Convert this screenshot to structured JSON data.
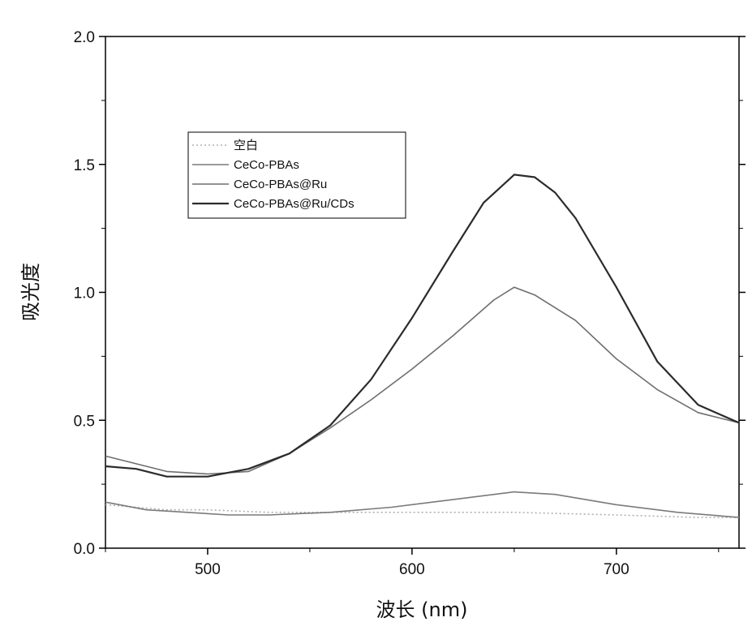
{
  "chart_data": {
    "type": "line",
    "title": "",
    "xlabel": "波长 (nm)",
    "ylabel": "吸光度",
    "xlim": [
      450,
      760
    ],
    "ylim": [
      0.0,
      2.0
    ],
    "x_ticks": [
      500,
      600,
      700
    ],
    "y_ticks": [
      0.0,
      0.5,
      1.0,
      1.5,
      2.0
    ],
    "x_tick_labels": [
      "500",
      "600",
      "700"
    ],
    "y_tick_labels": [
      "0.0",
      "0.5",
      "1.0",
      "1.5",
      "2.0"
    ],
    "legend_position": "upper-left",
    "grid": false,
    "series": [
      {
        "name": "空白",
        "color": "#b0b0b0",
        "dash": "dotted",
        "x": [
          450,
          480,
          500,
          530,
          560,
          600,
          650,
          700,
          740,
          760
        ],
        "y": [
          0.17,
          0.15,
          0.15,
          0.14,
          0.14,
          0.14,
          0.14,
          0.13,
          0.12,
          0.12
        ]
      },
      {
        "name": "CeCo-PBAs",
        "color": "#7a7a7a",
        "dash": "solid",
        "x": [
          450,
          470,
          490,
          510,
          530,
          560,
          590,
          620,
          650,
          670,
          700,
          730,
          760
        ],
        "y": [
          0.18,
          0.15,
          0.14,
          0.13,
          0.13,
          0.14,
          0.16,
          0.19,
          0.22,
          0.21,
          0.17,
          0.14,
          0.12
        ]
      },
      {
        "name": "CeCo-PBAs@Ru",
        "color": "#6e6e6e",
        "dash": "solid",
        "x": [
          450,
          465,
          480,
          500,
          520,
          540,
          560,
          580,
          600,
          620,
          640,
          650,
          660,
          680,
          700,
          720,
          740,
          760
        ],
        "y": [
          0.36,
          0.33,
          0.3,
          0.29,
          0.3,
          0.37,
          0.47,
          0.58,
          0.7,
          0.83,
          0.97,
          1.02,
          0.99,
          0.89,
          0.74,
          0.62,
          0.53,
          0.49
        ]
      },
      {
        "name": "CeCo-PBAs@Ru/CDs",
        "color": "#2b2b2b",
        "dash": "solid",
        "x": [
          450,
          465,
          480,
          500,
          520,
          540,
          560,
          580,
          600,
          620,
          635,
          650,
          660,
          670,
          680,
          700,
          720,
          740,
          760
        ],
        "y": [
          0.32,
          0.31,
          0.28,
          0.28,
          0.31,
          0.37,
          0.48,
          0.66,
          0.9,
          1.16,
          1.35,
          1.46,
          1.45,
          1.39,
          1.29,
          1.02,
          0.73,
          0.56,
          0.49
        ]
      }
    ]
  }
}
